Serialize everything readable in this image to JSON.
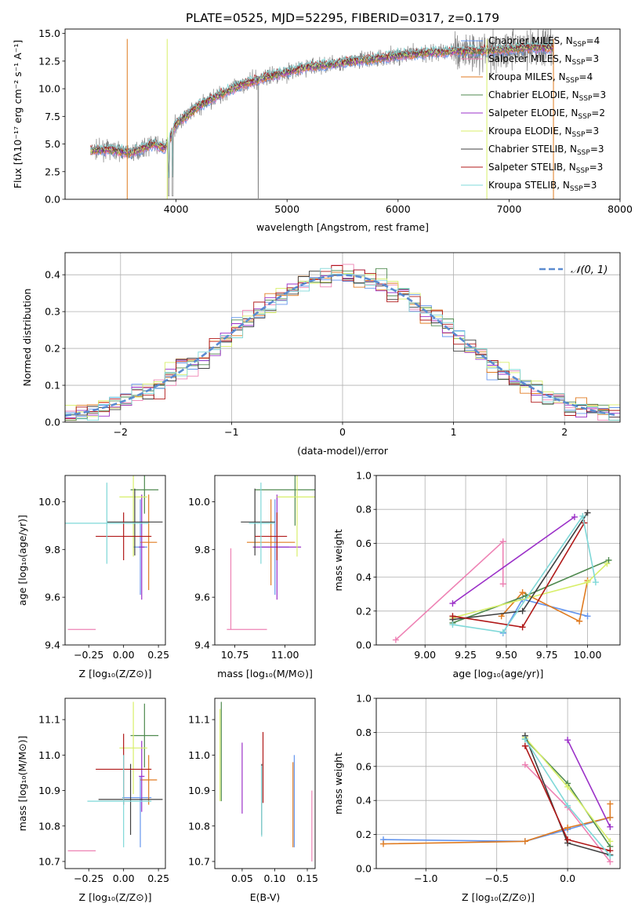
{
  "title": "PLATE=0525, MJD=52295, FIBERID=0317, z=0.179",
  "colors": {
    "Chabrier MILES": "#6495ed",
    "Salpeter MILES": "#ee82b4",
    "Kroupa MILES": "#e07b20",
    "Chabrier ELODIE": "#4f8a4f",
    "Salpeter ELODIE": "#9b30c8",
    "Kroupa ELODIE": "#d8ef6a",
    "Chabrier STELIB": "#404040",
    "Salpeter STELIB": "#b01818",
    "Kroupa STELIB": "#7fd8d8",
    "data": "#808080",
    "normal": "#5b8bd0"
  },
  "chart_data": [
    {
      "id": "spectrum",
      "type": "line",
      "xlabel": "wavelength [Angstrom, rest frame]",
      "ylabel": "Flux [fλ10⁻¹⁷ erg cm⁻² s⁻¹ A⁻¹]",
      "xlim": [
        3000,
        8000
      ],
      "ylim": [
        0,
        15.4
      ],
      "xticks": [
        4000,
        5000,
        6000,
        7000,
        8000
      ],
      "yticks": [
        0.0,
        2.5,
        5.0,
        7.5,
        10.0,
        12.5,
        15.0
      ],
      "legend_position": "top-right",
      "series": [
        {
          "name": "Chabrier MILES",
          "nssp": "4"
        },
        {
          "name": "Salpeter MILES",
          "nssp": "3"
        },
        {
          "name": "Kroupa MILES",
          "nssp": "4"
        },
        {
          "name": "Chabrier ELODIE",
          "nssp": "3"
        },
        {
          "name": "Salpeter ELODIE",
          "nssp": "2"
        },
        {
          "name": "Kroupa ELODIE",
          "nssp": "3"
        },
        {
          "name": "Chabrier STELIB",
          "nssp": "3"
        },
        {
          "name": "Salpeter STELIB",
          "nssp": "3"
        },
        {
          "name": "Kroupa STELIB",
          "nssp": "3"
        }
      ],
      "continuum": {
        "x": [
          3230,
          3400,
          3600,
          3800,
          3900,
          4000,
          4200,
          4400,
          4600,
          4800,
          5000,
          5200,
          5400,
          5600,
          5800,
          6000,
          6200,
          6500,
          6800,
          7000,
          7200,
          7400
        ],
        "y": [
          4.4,
          4.5,
          4.2,
          5.0,
          4.6,
          6.8,
          8.4,
          9.5,
          10.4,
          11.0,
          11.5,
          12.0,
          12.2,
          12.5,
          12.7,
          13.0,
          13.2,
          13.4,
          13.4,
          13.6,
          13.7,
          13.7
        ]
      }
    },
    {
      "id": "residuals",
      "type": "line",
      "xlabel": "(data-model)/error",
      "ylabel": "Normed distribution",
      "xlim": [
        -2.5,
        2.5
      ],
      "ylim": [
        0,
        0.46
      ],
      "xticks": [
        -2,
        -1,
        0,
        1,
        2
      ],
      "yticks": [
        0.0,
        0.1,
        0.2,
        0.3,
        0.4
      ],
      "legend_position": "top-right",
      "normal_label": "𝒩(0, 1)"
    },
    {
      "id": "age-vs-z",
      "type": "scatter",
      "xlabel": "Z [log₁₀(Z/Z⊙)]",
      "ylabel": "age  [log₁₀(age/yr)]",
      "xlim": [
        -0.42,
        0.3
      ],
      "ylim": [
        9.4,
        10.11
      ],
      "xticks": [
        "-0.25",
        "0.00",
        "0.25"
      ],
      "yticks": [
        "9.4",
        "9.6",
        "9.8",
        "10.0"
      ],
      "points": [
        {
          "series": "Chabrier MILES",
          "x": 0.12,
          "y": 9.81,
          "xerr": [
            0.05,
            0.05
          ],
          "yerr": [
            0.2,
            0.2
          ]
        },
        {
          "series": "Salpeter MILES",
          "x": -0.3,
          "y": 9.465,
          "xerr": [
            0.1,
            0.1
          ],
          "yerr": [
            0,
            0
          ]
        },
        {
          "series": "Kroupa MILES",
          "x": 0.18,
          "y": 9.83,
          "xerr": [
            0.06,
            0.06
          ],
          "yerr": [
            0.2,
            0.2
          ]
        },
        {
          "series": "Chabrier ELODIE",
          "x": 0.15,
          "y": 10.05,
          "xerr": [
            0.1,
            0.1
          ],
          "yerr": [
            0.1,
            0.1
          ]
        },
        {
          "series": "Salpeter ELODIE",
          "x": 0.13,
          "y": 9.81,
          "xerr": [
            0.02,
            0.02
          ],
          "yerr": [
            0.22,
            0.22
          ]
        },
        {
          "series": "Kroupa ELODIE",
          "x": 0.07,
          "y": 10.02,
          "xerr": [
            0.1,
            0.1
          ],
          "yerr": [
            0.25,
            0.25
          ]
        },
        {
          "series": "Chabrier STELIB",
          "x": 0.08,
          "y": 9.915,
          "xerr": [
            0.2,
            0.2
          ],
          "yerr": [
            0.14,
            0.14
          ]
        },
        {
          "series": "Salpeter STELIB",
          "x": 0.0,
          "y": 9.855,
          "xerr": [
            0.2,
            0.2
          ],
          "yerr": [
            0.1,
            0.1
          ]
        },
        {
          "series": "Kroupa STELIB",
          "x": -0.12,
          "y": 9.91,
          "xerr": [
            0.3,
            0.3
          ],
          "yerr": [
            0.17,
            0.17
          ]
        }
      ]
    },
    {
      "id": "age-vs-mass",
      "type": "scatter",
      "xlabel": "mass [log₁₀(M/M⊙)]",
      "xlim": [
        10.65,
        11.15
      ],
      "ylim": [
        9.4,
        10.11
      ],
      "xticks": [
        "10.75",
        "11.00"
      ],
      "yticks": [
        "9.4",
        "9.6",
        "9.8",
        "10.0"
      ],
      "points": [
        {
          "series": "Chabrier MILES",
          "x": 10.95,
          "y": 9.81,
          "xerr": [
            0.07,
            0.07
          ],
          "yerr": [
            0.2,
            0.2
          ]
        },
        {
          "series": "Salpeter MILES",
          "x": 10.73,
          "y": 9.465,
          "xerr": [
            0.02,
            0.18
          ],
          "yerr": [
            0,
            0.34
          ]
        },
        {
          "series": "Kroupa MILES",
          "x": 10.93,
          "y": 9.83,
          "xerr": [
            0.12,
            0.12
          ],
          "yerr": [
            0.18,
            0.18
          ]
        },
        {
          "series": "Chabrier ELODIE",
          "x": 11.05,
          "y": 10.05,
          "xerr": [
            0.2,
            0.2
          ],
          "yerr": [
            0.15,
            0.15
          ]
        },
        {
          "series": "Salpeter ELODIE",
          "x": 10.96,
          "y": 9.81,
          "xerr": [
            0.12,
            0.12
          ],
          "yerr": [
            0.22,
            0.22
          ]
        },
        {
          "series": "Kroupa ELODIE",
          "x": 11.06,
          "y": 10.02,
          "xerr": [
            0.1,
            0.1
          ],
          "yerr": [
            0.25,
            0.25
          ]
        },
        {
          "series": "Chabrier STELIB",
          "x": 10.85,
          "y": 9.915,
          "xerr": [
            0.07,
            0.1
          ],
          "yerr": [
            0.14,
            0.14
          ]
        },
        {
          "series": "Salpeter STELIB",
          "x": 10.96,
          "y": 9.855,
          "xerr": [
            0.11,
            0.05
          ],
          "yerr": [
            0.1,
            0.1
          ]
        },
        {
          "series": "Kroupa STELIB",
          "x": 10.88,
          "y": 9.91,
          "xerr": [
            0.06,
            0.07
          ],
          "yerr": [
            0.17,
            0.17
          ]
        }
      ]
    },
    {
      "id": "weight-vs-age",
      "type": "line",
      "xlabel": "age  [log₁₀(age/yr)]",
      "ylabel": "mass weight",
      "xlim": [
        8.7,
        10.2
      ],
      "ylim": [
        0,
        1.0
      ],
      "xticks": [
        "9.00",
        "9.25",
        "9.50",
        "9.75",
        "10.00"
      ],
      "yticks": [
        "0.0",
        "0.2",
        "0.4",
        "0.6",
        "0.8",
        "1.0"
      ],
      "series": [
        {
          "name": "Chabrier MILES",
          "x": [
            9.48,
            9.6,
            10.0
          ],
          "y": [
            0.07,
            0.27,
            0.17
          ]
        },
        {
          "name": "Salpeter MILES",
          "x": [
            8.82,
            9.48,
            9.48
          ],
          "y": [
            0.03,
            0.61,
            0.36
          ]
        },
        {
          "name": "Kroupa MILES",
          "x": [
            9.47,
            9.6,
            9.95,
            10.0
          ],
          "y": [
            0.17,
            0.31,
            0.14,
            0.38
          ]
        },
        {
          "name": "Chabrier ELODIE",
          "x": [
            9.17,
            9.62,
            10.13
          ],
          "y": [
            0.13,
            0.29,
            0.5
          ]
        },
        {
          "name": "Salpeter ELODIE",
          "x": [
            9.17,
            9.92
          ],
          "y": [
            0.245,
            0.755
          ]
        },
        {
          "name": "Kroupa ELODIE",
          "x": [
            9.17,
            10.0,
            10.12
          ],
          "y": [
            0.16,
            0.37,
            0.48
          ]
        },
        {
          "name": "Chabrier STELIB",
          "x": [
            9.17,
            9.6,
            10.0
          ],
          "y": [
            0.15,
            0.2,
            0.78
          ]
        },
        {
          "name": "Salpeter STELIB",
          "x": [
            9.17,
            9.6,
            9.98
          ],
          "y": [
            0.17,
            0.105,
            0.72
          ]
        },
        {
          "name": "Kroupa STELIB",
          "x": [
            9.17,
            9.48,
            9.97,
            10.05
          ],
          "y": [
            0.12,
            0.075,
            0.76,
            0.37
          ]
        }
      ]
    },
    {
      "id": "mass-vs-z",
      "type": "scatter",
      "xlabel": "Z [log₁₀(Z/Z⊙)]",
      "ylabel": "mass [log₁₀(M/M⊙)]",
      "xlim": [
        -0.42,
        0.3
      ],
      "ylim": [
        10.68,
        11.16
      ],
      "xticks": [
        "-0.25",
        "0.00",
        "0.25"
      ],
      "yticks": [
        "10.7",
        "10.8",
        "10.9",
        "11.0",
        "11.1"
      ],
      "points": [
        {
          "series": "Chabrier MILES",
          "x": 0.12,
          "y": 10.88,
          "xerr": [
            0.13,
            0.08
          ],
          "yerr": [
            0.14,
            0.06
          ]
        },
        {
          "series": "Salpeter MILES",
          "x": -0.3,
          "y": 10.73,
          "xerr": [
            0.1,
            0.1
          ],
          "yerr": [
            0,
            0
          ]
        },
        {
          "series": "Kroupa MILES",
          "x": 0.18,
          "y": 10.93,
          "xerr": [
            0.06,
            0.06
          ],
          "yerr": [
            0.07,
            0.07
          ]
        },
        {
          "series": "Chabrier ELODIE",
          "x": 0.15,
          "y": 11.055,
          "xerr": [
            0.1,
            0.1
          ],
          "yerr": [
            0.09,
            0.09
          ]
        },
        {
          "series": "Salpeter ELODIE",
          "x": 0.13,
          "y": 10.94,
          "xerr": [
            0.02,
            0.02
          ],
          "yerr": [
            0.1,
            0.1
          ]
        },
        {
          "series": "Kroupa ELODIE",
          "x": 0.07,
          "y": 11.02,
          "xerr": [
            0.1,
            0.1
          ],
          "yerr": [
            0.13,
            0.13
          ]
        },
        {
          "series": "Chabrier STELIB",
          "x": 0.05,
          "y": 10.875,
          "xerr": [
            0.23,
            0.23
          ],
          "yerr": [
            0.1,
            0.1
          ]
        },
        {
          "series": "Salpeter STELIB",
          "x": 0.0,
          "y": 10.96,
          "xerr": [
            0.2,
            0.2
          ],
          "yerr": [
            0.1,
            0.1
          ]
        },
        {
          "series": "Kroupa STELIB",
          "x": 0.0,
          "y": 10.87,
          "xerr": [
            0.26,
            0.2
          ],
          "yerr": [
            0.13,
            0.13
          ]
        }
      ]
    },
    {
      "id": "mass-vs-ebv",
      "type": "scatter",
      "xlabel": "E(B-V)",
      "xlim": [
        0.008,
        0.162
      ],
      "ylim": [
        10.68,
        11.16
      ],
      "xticks": [
        "0.05",
        "0.10",
        "0.15"
      ],
      "yticks": [
        "10.7",
        "10.8",
        "10.9",
        "11.0",
        "11.1"
      ],
      "points": [
        {
          "series": "Chabrier MILES",
          "x": 0.13,
          "y": 10.88,
          "xerr": [
            0,
            0
          ],
          "yerr": [
            0.14,
            0.12
          ]
        },
        {
          "series": "Salpeter MILES",
          "x": 0.157,
          "y": 10.8,
          "xerr": [
            0,
            0
          ],
          "yerr": [
            0.1,
            0.1
          ]
        },
        {
          "series": "Kroupa MILES",
          "x": 0.128,
          "y": 10.86,
          "xerr": [
            0,
            0
          ],
          "yerr": [
            0.12,
            0.12
          ]
        },
        {
          "series": "Chabrier ELODIE",
          "x": 0.018,
          "y": 11.0,
          "xerr": [
            0,
            0
          ],
          "yerr": [
            0.13,
            0.15
          ]
        },
        {
          "series": "Salpeter ELODIE",
          "x": 0.05,
          "y": 10.935,
          "xerr": [
            0,
            0
          ],
          "yerr": [
            0.1,
            0.1
          ]
        },
        {
          "series": "Kroupa ELODIE",
          "x": 0.016,
          "y": 11.0,
          "xerr": [
            0,
            0
          ],
          "yerr": [
            0.13,
            0.13
          ]
        },
        {
          "series": "Chabrier STELIB",
          "x": 0.08,
          "y": 10.875,
          "xerr": [
            0,
            0
          ],
          "yerr": [
            0.1,
            0.1
          ]
        },
        {
          "series": "Salpeter STELIB",
          "x": 0.082,
          "y": 10.965,
          "xerr": [
            0,
            0
          ],
          "yerr": [
            0.1,
            0.1
          ]
        },
        {
          "series": "Kroupa STELIB",
          "x": 0.08,
          "y": 10.87,
          "xerr": [
            0,
            0
          ],
          "yerr": [
            0.1,
            0.1
          ]
        }
      ]
    },
    {
      "id": "weight-vs-z",
      "type": "line",
      "xlabel": "Z [log₁₀(Z/Z⊙)]",
      "ylabel": "mass weight",
      "xlim": [
        -1.35,
        0.37
      ],
      "ylim": [
        0,
        1.0
      ],
      "xticks": [
        "-1.0",
        "-0.5",
        "0.0"
      ],
      "yticks": [
        "0.0",
        "0.2",
        "0.4",
        "0.6",
        "0.8",
        "1.0"
      ],
      "series": [
        {
          "name": "Chabrier MILES",
          "x": [
            -1.3,
            -0.3,
            0.0,
            0.3
          ],
          "y": [
            0.17,
            0.16,
            0.23,
            0.3
          ]
        },
        {
          "name": "Salpeter MILES",
          "x": [
            -0.3,
            0.0,
            0.3
          ],
          "y": [
            0.61,
            0.36,
            0.04
          ]
        },
        {
          "name": "Kroupa MILES",
          "x": [
            -1.3,
            -0.3,
            0.0,
            0.3,
            0.3
          ],
          "y": [
            0.145,
            0.16,
            0.24,
            0.3,
            0.38
          ]
        },
        {
          "name": "Chabrier ELODIE",
          "x": [
            -0.3,
            0.0,
            0.3
          ],
          "y": [
            0.76,
            0.5,
            0.13
          ]
        },
        {
          "name": "Salpeter ELODIE",
          "x": [
            0.0,
            0.3
          ],
          "y": [
            0.755,
            0.245
          ]
        },
        {
          "name": "Kroupa ELODIE",
          "x": [
            -0.3,
            0.0,
            0.3
          ],
          "y": [
            0.77,
            0.48,
            0.16
          ]
        },
        {
          "name": "Chabrier STELIB",
          "x": [
            -0.3,
            0.0,
            0.3
          ],
          "y": [
            0.78,
            0.15,
            0.08
          ]
        },
        {
          "name": "Salpeter STELIB",
          "x": [
            -0.3,
            0.0,
            0.3
          ],
          "y": [
            0.72,
            0.17,
            0.105
          ]
        },
        {
          "name": "Kroupa STELIB",
          "x": [
            -0.3,
            0.0,
            0.3
          ],
          "y": [
            0.76,
            0.37,
            0.075
          ]
        }
      ]
    }
  ]
}
